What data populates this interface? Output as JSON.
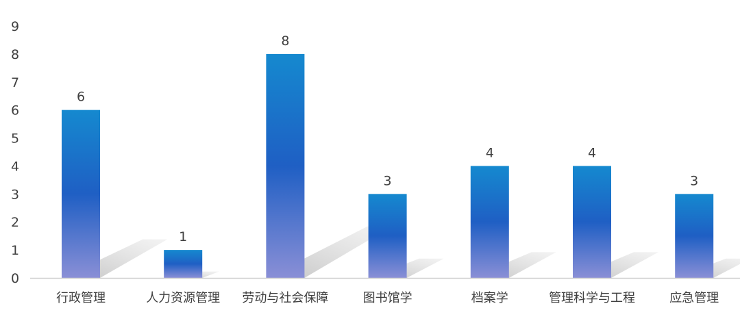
{
  "chart_data": {
    "type": "bar",
    "categories": [
      "行政管理",
      "人力资源管理",
      "劳动与社会保障",
      "图书馆学",
      "档案学",
      "管理科学与工程",
      "应急管理"
    ],
    "values": [
      6,
      1,
      8,
      3,
      4,
      4,
      3
    ],
    "ylim": [
      0,
      9
    ],
    "yticks": [
      0,
      1,
      2,
      3,
      4,
      5,
      6,
      7,
      8,
      9
    ],
    "grid": false,
    "data_labels": true,
    "colors": {
      "bar_top": "#1589cf",
      "bar_mid": "#1f5fc4",
      "bar_bottom": "#8a8fd6",
      "shadow": "#c8c8c8",
      "axis": "#d0d0d0"
    }
  }
}
